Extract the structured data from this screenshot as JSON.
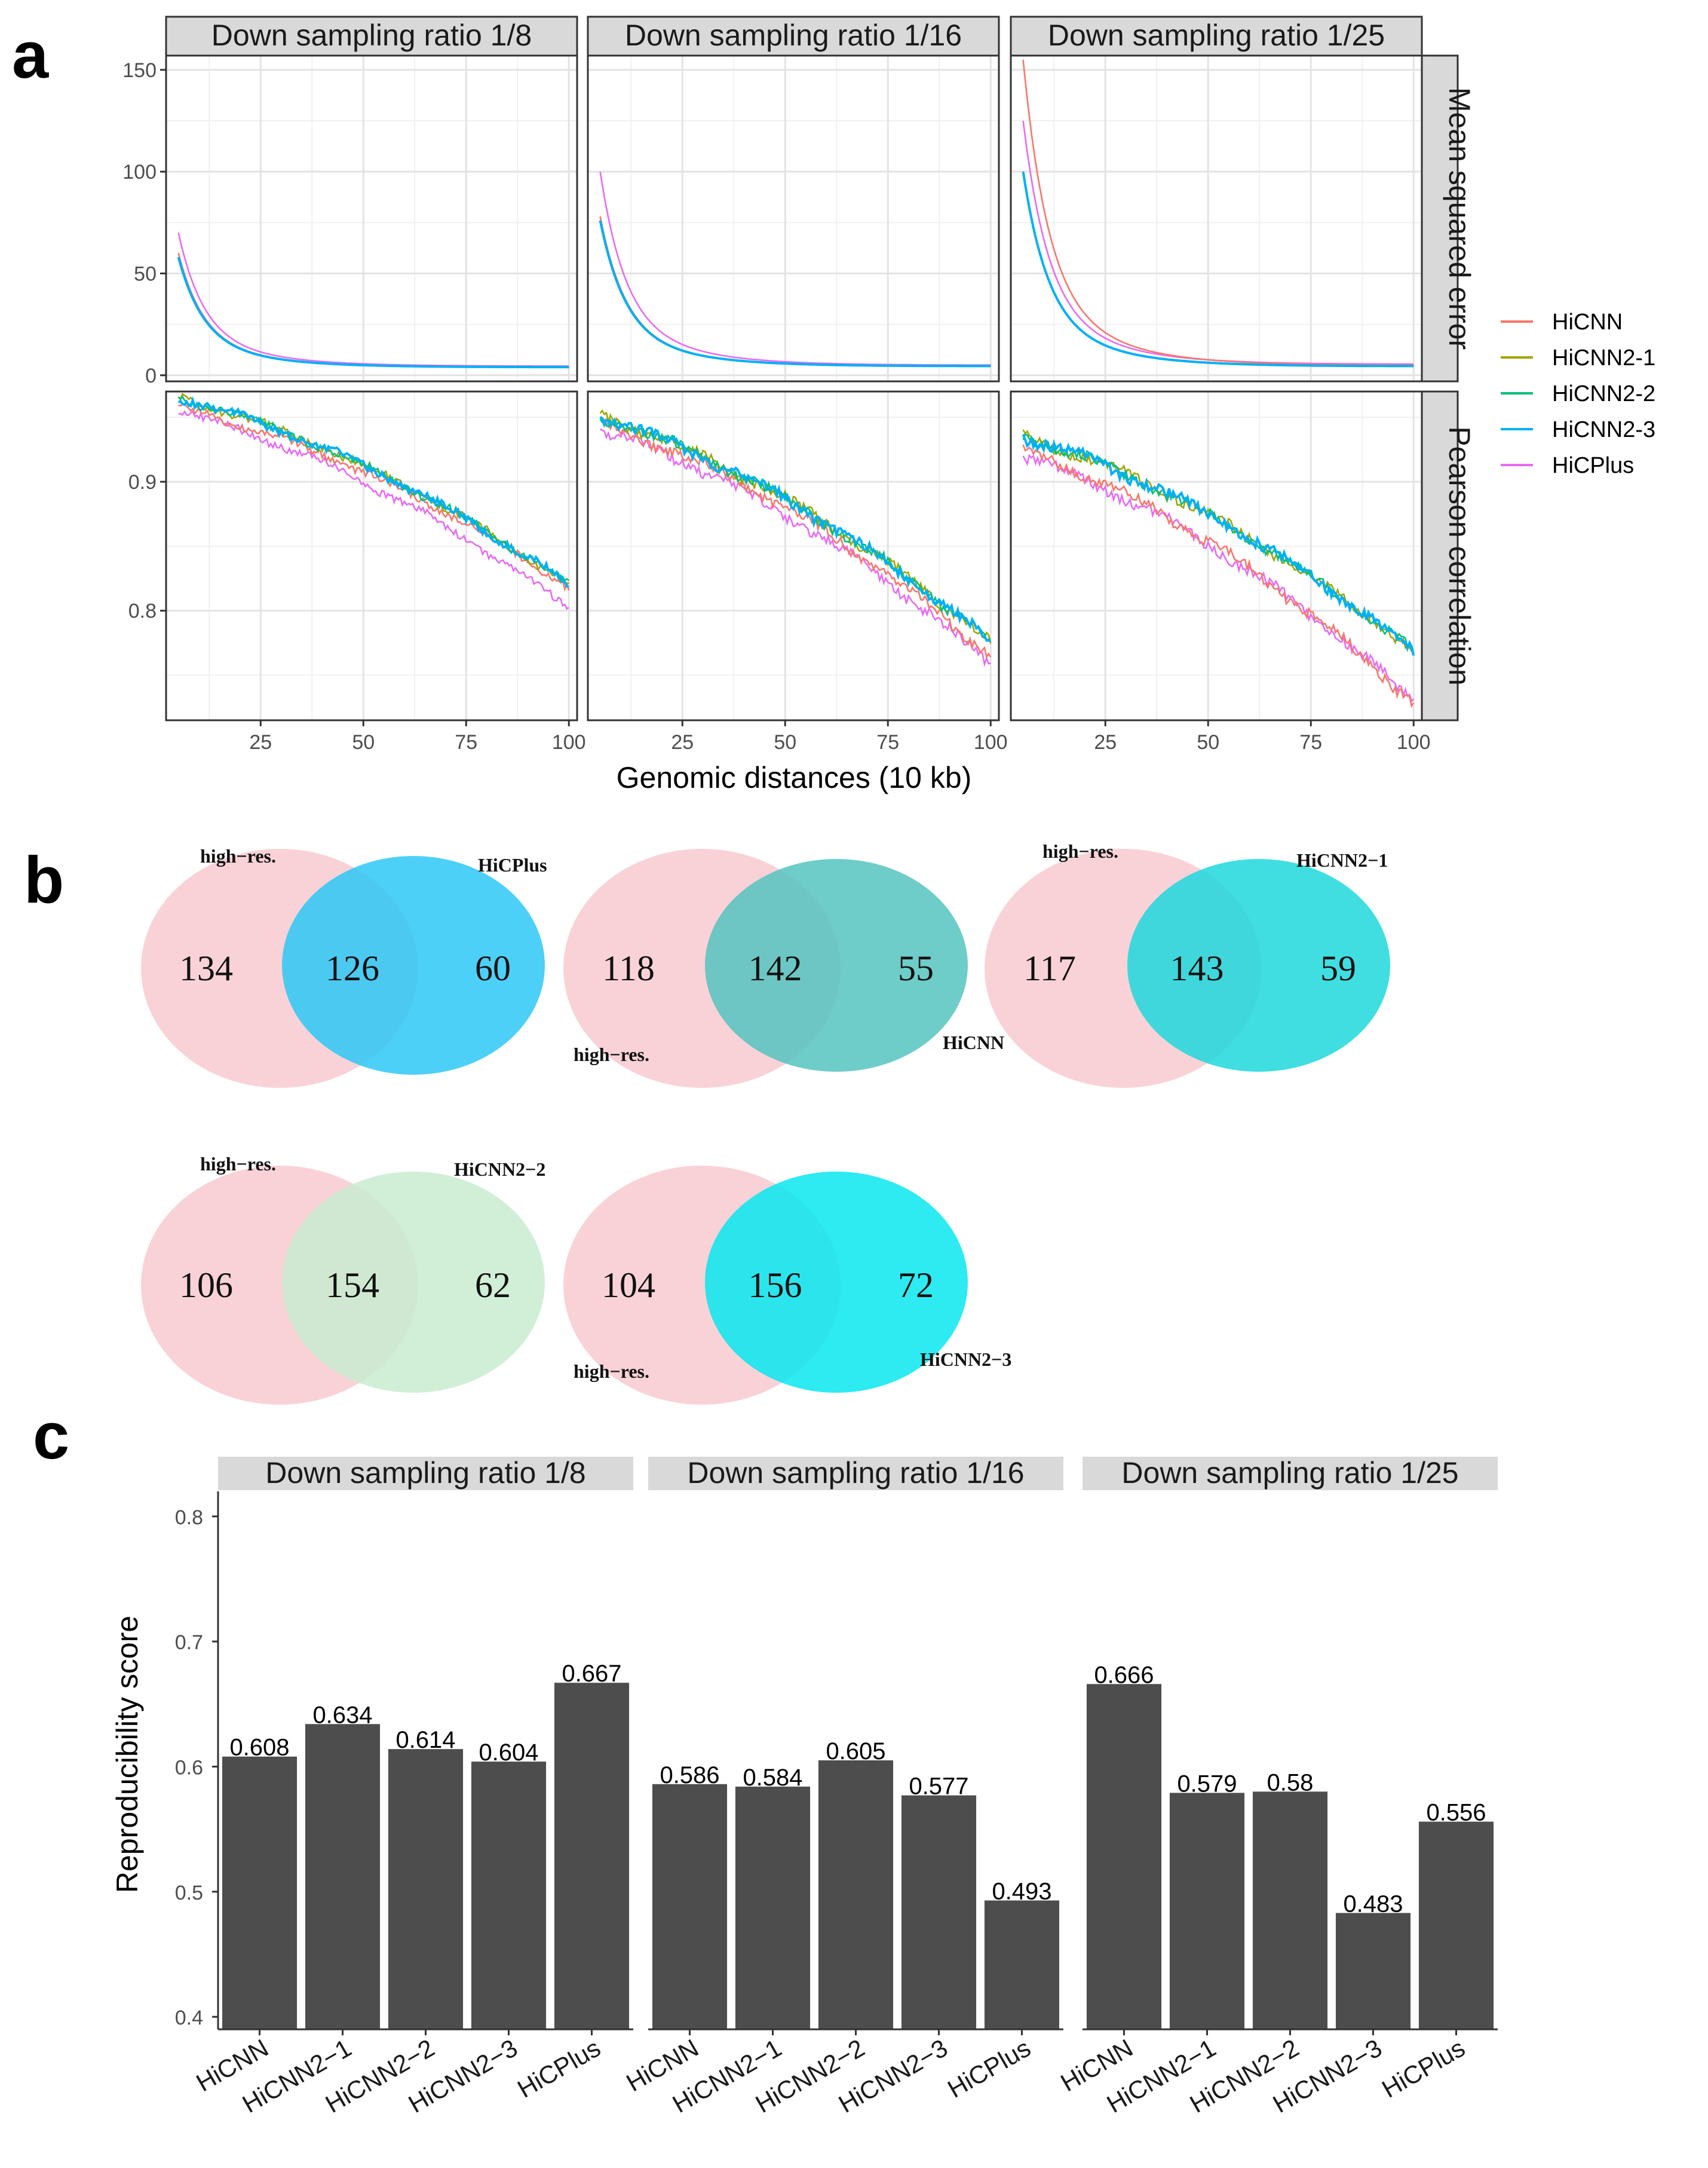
{
  "panel_letters": {
    "a": "a",
    "b": "b",
    "c": "c"
  },
  "legend_colors": {
    "HiCNN": "#f8766d",
    "HiCNN2-1": "#a3a500",
    "HiCNN2-2": "#00bf7d",
    "HiCNN2-3": "#00b0f6",
    "HiCPlus": "#e76bf3"
  },
  "chart_data": [
    {
      "type": "line",
      "title": "Panel a",
      "facet_cols": [
        "Down sampling ratio 1/8",
        "Down sampling ratio 1/16",
        "Down sampling ratio 1/25"
      ],
      "facet_rows": [
        "Mean squared error",
        "Pearson correlation"
      ],
      "xlabel": "Genomic distances (10 kb)",
      "x_ticks": [
        "25",
        "50",
        "75",
        "100"
      ],
      "xlim": [
        2,
        102
      ],
      "rows": [
        {
          "name": "Mean squared error",
          "ylim": [
            -3,
            157
          ],
          "y_ticks": [
            "0",
            "50",
            "100",
            "150"
          ],
          "y_tick_values": [
            0,
            50,
            100,
            150
          ]
        },
        {
          "name": "Pearson correlation",
          "ylim": [
            0.715,
            0.97
          ],
          "y_ticks": [
            "0.8",
            "0.9"
          ],
          "y_tick_values": [
            0.8,
            0.9
          ]
        }
      ],
      "legend": [
        "HiCNN",
        "HiCNN2-1",
        "HiCNN2-2",
        "HiCNN2-3",
        "HiCPlus"
      ],
      "series_params": {
        "mse": [
          [
            [
              60,
              58,
              58,
              58,
              70
            ],
            [
              4,
              4,
              4,
              4,
              4.5
            ]
          ],
          [
            [
              78,
              76,
              76,
              76,
              100
            ],
            [
              4.5,
              4.5,
              4.5,
              4.5,
              5
            ]
          ],
          [
            [
              155,
              100,
              100,
              100,
              125
            ],
            [
              5,
              4.5,
              4.5,
              4.5,
              5.5
            ]
          ]
        ],
        "pearson": [
          [
            [
              0.958,
              0.965,
              0.965,
              0.965,
              0.955
            ],
            [
              0.818,
              0.82,
              0.82,
              0.82,
              0.802
            ],
            0.003
          ],
          [
            [
              0.945,
              0.95,
              0.95,
              0.95,
              0.94
            ],
            [
              0.765,
              0.775,
              0.775,
              0.775,
              0.758
            ],
            0.004
          ],
          [
            [
              0.925,
              0.935,
              0.935,
              0.935,
              0.92
            ],
            [
              0.728,
              0.768,
              0.768,
              0.768,
              0.73
            ],
            0.004
          ]
        ]
      }
    },
    {
      "type": "venn",
      "title": "Panel b",
      "diagrams": [
        {
          "left_label": "high−res.",
          "right_label": "HiCPlus",
          "left_only": "134",
          "overlap": "126",
          "right_only": "60"
        },
        {
          "left_label": "high−res.",
          "right_label": "HiCNN",
          "left_only": "118",
          "overlap": "142",
          "right_only": "55"
        },
        {
          "left_label": "high−res.",
          "right_label": "HiCNN2−1",
          "left_only": "117",
          "overlap": "143",
          "right_only": "59"
        },
        {
          "left_label": "high−res.",
          "right_label": "HiCNN2−2",
          "left_only": "106",
          "overlap": "154",
          "right_only": "62"
        },
        {
          "left_label": "high−res.",
          "right_label": "HiCNN2−3",
          "left_only": "104",
          "overlap": "156",
          "right_only": "72"
        }
      ]
    },
    {
      "type": "bar",
      "title": "Panel c",
      "ylabel": "Reproducibility score",
      "ylim": [
        0.39,
        0.82
      ],
      "y_ticks": [
        "0.4",
        "0.5",
        "0.6",
        "0.7",
        "0.8"
      ],
      "y_tick_values": [
        0.4,
        0.5,
        0.6,
        0.7,
        0.8
      ],
      "categories": [
        "HiCNN",
        "HiCNN2−1",
        "HiCNN2−2",
        "HiCNN2−3",
        "HiCPlus"
      ],
      "bar_color": "#4d4d4d",
      "facets": [
        {
          "name": "Down sampling ratio 1/8",
          "values": [
            0.608,
            0.634,
            0.614,
            0.604,
            0.667
          ],
          "labels": [
            "0.608",
            "0.634",
            "0.614",
            "0.604",
            "0.667"
          ]
        },
        {
          "name": "Down sampling ratio 1/16",
          "values": [
            0.586,
            0.584,
            0.605,
            0.577,
            0.493
          ],
          "labels": [
            "0.586",
            "0.584",
            "0.605",
            "0.577",
            "0.493"
          ]
        },
        {
          "name": "Down sampling ratio 1/25",
          "values": [
            0.666,
            0.579,
            0.58,
            0.483,
            0.556
          ],
          "labels": [
            "0.666",
            "0.579",
            "0.58",
            "0.483",
            "0.556"
          ]
        }
      ]
    }
  ]
}
